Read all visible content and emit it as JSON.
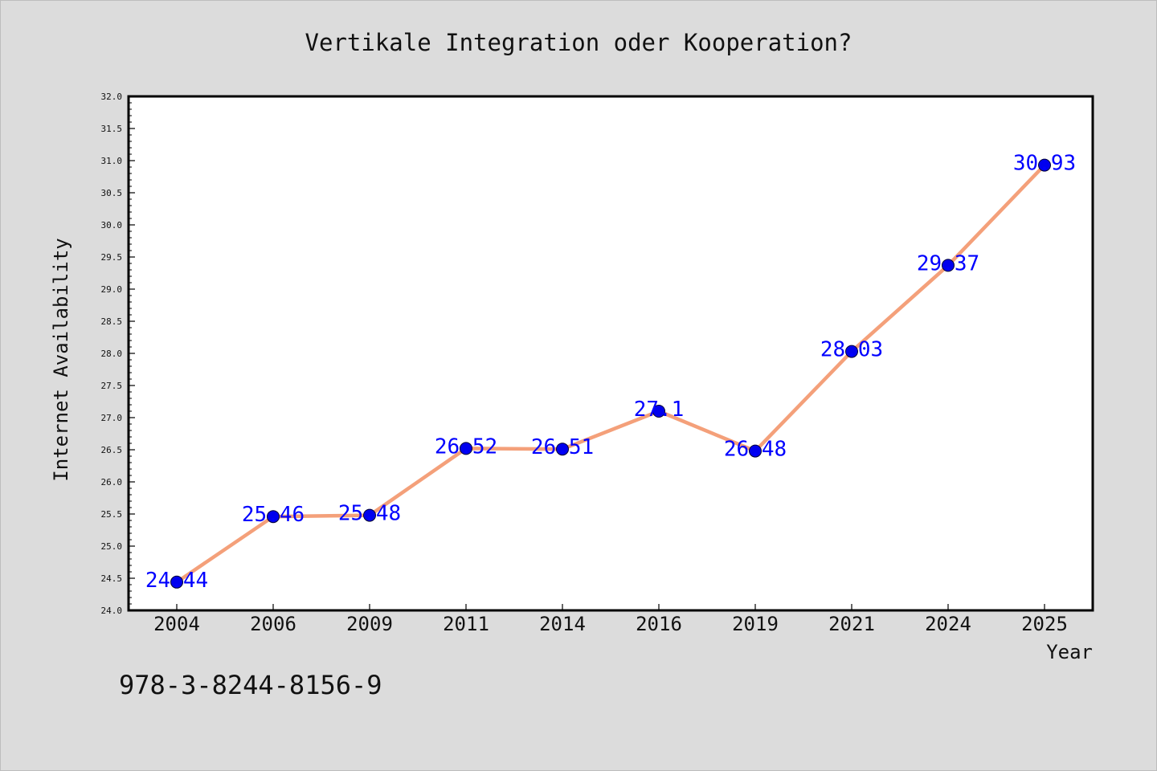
{
  "chart_data": {
    "type": "line",
    "title": "Vertikale Integration oder Kooperation?",
    "xlabel": "Year",
    "ylabel": "Internet Availability",
    "categories": [
      "2004",
      "2006",
      "2009",
      "2011",
      "2014",
      "2016",
      "2019",
      "2021",
      "2024",
      "2025"
    ],
    "series": [
      {
        "values": [
          24.44,
          25.46,
          25.48,
          26.52,
          26.51,
          27.1,
          26.48,
          28.03,
          29.37,
          30.93
        ],
        "labels": [
          "24.44",
          "25.46",
          "25.48",
          "26.52",
          "26.51",
          "27.1",
          "26.48",
          "28.03",
          "29.37",
          "30.93"
        ],
        "line_color": "#f4a07a",
        "marker_color": "#0000ee",
        "label_color": "#0000ff"
      }
    ],
    "ylim": [
      24.0,
      32.0
    ],
    "yticks": [
      "24.0",
      "24.5",
      "25.0",
      "25.5",
      "26.0",
      "26.5",
      "27.0",
      "27.5",
      "28.0",
      "28.5",
      "29.0",
      "29.5",
      "30.0",
      "30.5",
      "31.0",
      "31.5",
      "32.0"
    ],
    "grid": false,
    "background_color": "#dcdcdc",
    "plot_background_color": "#ffffff"
  },
  "footer": {
    "isbn": "978-3-8244-8156-9"
  }
}
